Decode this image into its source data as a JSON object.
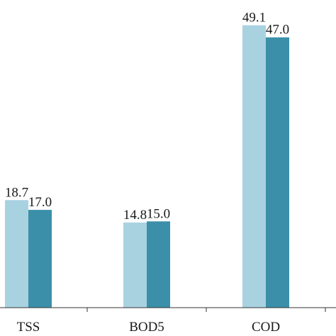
{
  "chart_data": {
    "type": "bar",
    "categories": [
      "TSS",
      "BOD5",
      "COD"
    ],
    "series": [
      {
        "values": [
          18.7,
          14.8,
          49.1
        ],
        "color": "#a9d2e0"
      },
      {
        "values": [
          17.0,
          15.0,
          47.0
        ],
        "color": "#3b8fa9"
      }
    ],
    "data_labels": [
      [
        "18.7",
        "14.8",
        "49.1"
      ],
      [
        "17.0",
        "15.0",
        "47.0"
      ]
    ],
    "title": "",
    "xlabel": "",
    "ylabel": "",
    "ylim": [
      0,
      53
    ],
    "grid": false,
    "legend": "none"
  }
}
